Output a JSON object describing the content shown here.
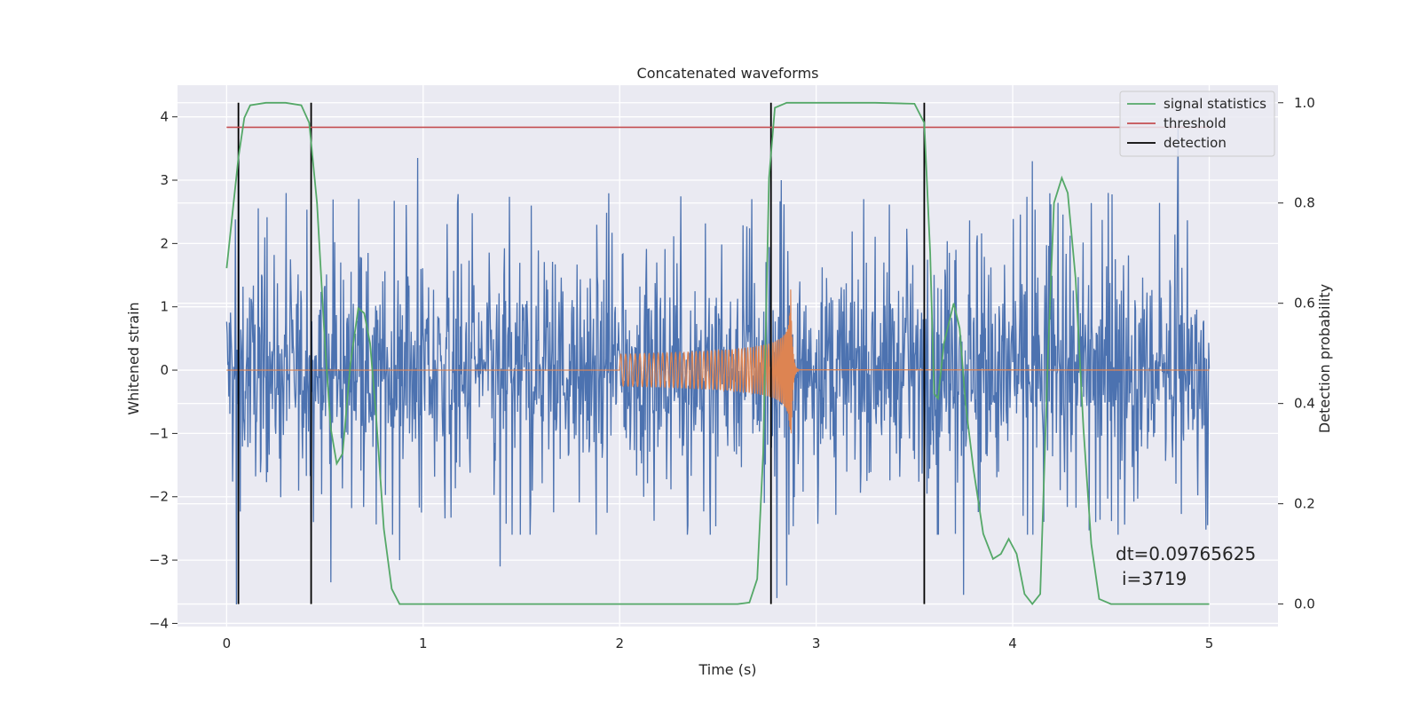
{
  "chart_data": {
    "type": "line",
    "title": "Concatenated waveforms",
    "xlabel": "Time (s)",
    "ylabel": "Whitened strain",
    "y2label": "Detection probability",
    "xlim": [
      -0.25,
      5.35
    ],
    "ylim": [
      -4.05,
      4.5
    ],
    "y2lim": [
      -0.045,
      1.035
    ],
    "xticks": [
      0,
      1,
      2,
      3,
      4,
      5
    ],
    "yticks": [
      -4,
      -3,
      -2,
      -1,
      0,
      1,
      2,
      3,
      4
    ],
    "y2ticks": [
      0.0,
      0.2,
      0.4,
      0.6,
      0.8,
      1.0
    ],
    "ytick_labels": [
      "−4",
      "−3",
      "−2",
      "−1",
      "0",
      "1",
      "2",
      "3",
      "4"
    ],
    "y2tick_labels": [
      "0.0",
      "0.2",
      "0.4",
      "0.6",
      "0.8",
      "1.0"
    ],
    "grid": true,
    "legend_position": "top-right",
    "annotation": {
      "line1": "dt=0.09765625",
      "line2": "i=3719"
    },
    "series": [
      {
        "name": "",
        "description": "noisy whitened strain (blue), dense noise roughly within ±2 with spikes to about ±3.7",
        "color": "#4c72b0",
        "x_range": [
          0,
          5
        ],
        "envelope_core": 1.3,
        "spike_points": [
          [
            0.05,
            -3.7
          ],
          [
            0.06,
            3.6
          ],
          [
            0.43,
            -2.7
          ],
          [
            0.44,
            -2.4
          ],
          [
            0.53,
            -3.35
          ],
          [
            0.88,
            -3.0
          ],
          [
            0.97,
            3.35
          ],
          [
            1.39,
            -3.1
          ],
          [
            1.55,
            2.6
          ],
          [
            2.12,
            -2.0
          ],
          [
            2.46,
            -2.6
          ],
          [
            2.67,
            2.7
          ],
          [
            2.8,
            -3.6
          ],
          [
            2.82,
            3.0
          ],
          [
            2.85,
            -3.4
          ],
          [
            3.24,
            2.7
          ],
          [
            3.71,
            1.9
          ],
          [
            3.75,
            -3.55
          ],
          [
            4.1,
            3.3
          ],
          [
            4.42,
            -2.4
          ],
          [
            4.84,
            3.85
          ],
          [
            4.99,
            -2.45
          ]
        ]
      },
      {
        "name": "",
        "description": "injected chirp signal (orange)",
        "color": "#dd8452",
        "chirp": {
          "start": 2.0,
          "merger": 2.87,
          "end": 5.0,
          "start_amplitude": 0.25,
          "peak_amplitude": 1.5,
          "min_amplitude": -1.0
        }
      },
      {
        "name": "signal statistics",
        "axis": "right",
        "color": "#55a868",
        "points": [
          [
            0.0,
            0.67
          ],
          [
            0.03,
            0.78
          ],
          [
            0.06,
            0.89
          ],
          [
            0.09,
            0.97
          ],
          [
            0.12,
            0.995
          ],
          [
            0.2,
            1.0
          ],
          [
            0.3,
            1.0
          ],
          [
            0.38,
            0.995
          ],
          [
            0.42,
            0.96
          ],
          [
            0.46,
            0.8
          ],
          [
            0.5,
            0.52
          ],
          [
            0.53,
            0.35
          ],
          [
            0.56,
            0.28
          ],
          [
            0.59,
            0.3
          ],
          [
            0.63,
            0.48
          ],
          [
            0.67,
            0.59
          ],
          [
            0.7,
            0.58
          ],
          [
            0.73,
            0.52
          ],
          [
            0.76,
            0.38
          ],
          [
            0.8,
            0.15
          ],
          [
            0.84,
            0.03
          ],
          [
            0.88,
            0.0
          ],
          [
            1.0,
            0.0
          ],
          [
            2.0,
            0.0
          ],
          [
            2.6,
            0.0
          ],
          [
            2.66,
            0.003
          ],
          [
            2.7,
            0.05
          ],
          [
            2.73,
            0.3
          ],
          [
            2.76,
            0.85
          ],
          [
            2.79,
            0.99
          ],
          [
            2.85,
            1.0
          ],
          [
            3.3,
            1.0
          ],
          [
            3.5,
            0.998
          ],
          [
            3.55,
            0.96
          ],
          [
            3.58,
            0.7
          ],
          [
            3.6,
            0.42
          ],
          [
            3.62,
            0.41
          ],
          [
            3.65,
            0.52
          ],
          [
            3.7,
            0.6
          ],
          [
            3.73,
            0.55
          ],
          [
            3.76,
            0.4
          ],
          [
            3.8,
            0.27
          ],
          [
            3.85,
            0.14
          ],
          [
            3.9,
            0.09
          ],
          [
            3.94,
            0.1
          ],
          [
            3.98,
            0.13
          ],
          [
            4.02,
            0.1
          ],
          [
            4.06,
            0.02
          ],
          [
            4.1,
            0.0
          ],
          [
            4.14,
            0.02
          ],
          [
            4.18,
            0.5
          ],
          [
            4.21,
            0.8
          ],
          [
            4.25,
            0.85
          ],
          [
            4.28,
            0.82
          ],
          [
            4.32,
            0.65
          ],
          [
            4.36,
            0.35
          ],
          [
            4.4,
            0.12
          ],
          [
            4.44,
            0.01
          ],
          [
            4.5,
            0.0
          ],
          [
            5.0,
            0.0
          ]
        ]
      },
      {
        "name": "threshold",
        "axis": "right",
        "color": "#c44e52",
        "value": 0.951,
        "x_range": [
          0,
          5
        ]
      },
      {
        "name": "detection",
        "axis": "right",
        "color": "#000000",
        "x": [
          0.06,
          0.43,
          2.77,
          3.55
        ],
        "y_range": [
          0.0,
          1.0
        ]
      }
    ]
  }
}
